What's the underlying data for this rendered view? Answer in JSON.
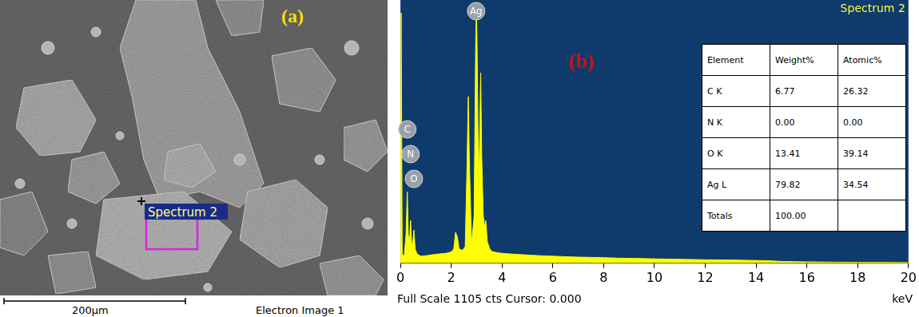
{
  "panel_a": {
    "label": "(a)",
    "marker_label": "Spectrum 2",
    "scale_bar": "200µm",
    "caption": "Electron Image 1"
  },
  "chart_data": {
    "type": "line",
    "label": "(b)",
    "title": "Spectrum 2",
    "x_label": "keV",
    "footer": "Full Scale 1105 cts Cursor: 0.000",
    "x": [
      0,
      0.03,
      0.07,
      0.15,
      0.22,
      0.27,
      0.31,
      0.36,
      0.4,
      0.44,
      0.49,
      0.53,
      0.58,
      0.65,
      0.8,
      1.0,
      1.2,
      1.4,
      1.6,
      1.8,
      2.0,
      2.1,
      2.17,
      2.24,
      2.31,
      2.45,
      2.55,
      2.62,
      2.67,
      2.72,
      2.8,
      2.9,
      2.96,
      2.99,
      3.02,
      3.08,
      3.13,
      3.16,
      3.2,
      3.26,
      3.32,
      3.36,
      3.42,
      3.52,
      3.6,
      3.8,
      4.0,
      4.5,
      5.0,
      5.5,
      6.0,
      6.5,
      7.0,
      7.5,
      8.0,
      8.5,
      9.0,
      9.5,
      10.0,
      11.0,
      12.0,
      13.0,
      14.0,
      14.5,
      15.0,
      16.0,
      17.0,
      18.0,
      19.0,
      20.0
    ],
    "values": [
      0,
      1050,
      40,
      30,
      120,
      300,
      120,
      90,
      180,
      80,
      90,
      140,
      60,
      40,
      30,
      32,
      35,
      38,
      40,
      42,
      48,
      60,
      130,
      110,
      60,
      55,
      70,
      400,
      700,
      400,
      80,
      200,
      900,
      1080,
      900,
      300,
      600,
      800,
      450,
      200,
      150,
      180,
      90,
      60,
      50,
      45,
      42,
      38,
      35,
      32,
      30,
      28,
      26,
      25,
      24,
      22,
      21,
      20,
      19,
      17,
      15,
      14,
      12,
      11,
      8,
      6,
      5,
      4,
      4,
      3
    ],
    "color": "#ffff00",
    "xlim": [
      0,
      20
    ],
    "xticks": [
      0,
      2,
      4,
      6,
      8,
      10,
      12,
      14,
      16,
      18,
      20
    ],
    "ylim": [
      0,
      1105
    ],
    "grid": false,
    "tick_labels": "x",
    "annotations": [
      {
        "text": "Ag",
        "x": 2.98
      },
      {
        "text": "C",
        "x": 0.27
      },
      {
        "text": "N",
        "x": 0.4
      },
      {
        "text": "O",
        "x": 0.53
      }
    ]
  },
  "table": {
    "header": [
      "Element",
      "Weight%",
      "Atomic%"
    ],
    "rows": [
      [
        "C K",
        "6.77",
        "26.32"
      ],
      [
        "N K",
        "0.00",
        "0.00"
      ],
      [
        "O K",
        "13.41",
        "39.14"
      ],
      [
        "Ag L",
        "79.82",
        "34.54"
      ],
      [
        "Totals",
        "100.00"
      ]
    ]
  }
}
